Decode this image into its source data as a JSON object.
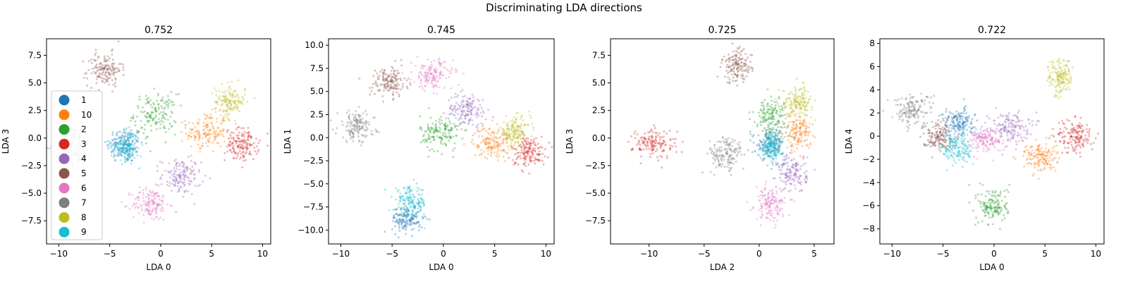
{
  "figure_title": "Discriminating LDA directions",
  "class_colors": {
    "1": "#1f77b4",
    "10": "#ff7f0e",
    "2": "#2ca02c",
    "3": "#d62728",
    "4": "#9467bd",
    "5": "#8c564b",
    "6": "#e377c2",
    "7": "#7f7f7f",
    "8": "#bcbd22",
    "9": "#17becf"
  },
  "legend": {
    "entries": [
      "1",
      "10",
      "2",
      "3",
      "4",
      "5",
      "6",
      "7",
      "8",
      "9"
    ],
    "location": "lower-left of first plot"
  },
  "chart_data": [
    {
      "type": "scatter",
      "title": "0.752",
      "xlabel": "LDA 0",
      "ylabel": "LDA 3",
      "xlim": [
        -11.2,
        10.8
      ],
      "ylim": [
        -9.6,
        9.0
      ],
      "xticks": [
        -10,
        -5,
        0,
        5,
        10
      ],
      "xtick_labels": [
        "−10",
        "−5",
        "0",
        "5",
        "10"
      ],
      "yticks": [
        -7.5,
        -5.0,
        -2.5,
        0.0,
        2.5,
        5.0,
        7.5
      ],
      "ytick_labels": [
        "−7.5",
        "−5.0",
        "−2.5",
        "0.0",
        "2.5",
        "5.0",
        "7.5"
      ],
      "grid": false,
      "has_legend": true,
      "clusters": [
        {
          "label": "1",
          "center": [
            -3.5,
            -0.6
          ],
          "spread": [
            1.2,
            1.1
          ]
        },
        {
          "label": "10",
          "center": [
            4.5,
            0.5
          ],
          "spread": [
            1.3,
            1.2
          ]
        },
        {
          "label": "2",
          "center": [
            -0.5,
            2.2
          ],
          "spread": [
            1.4,
            1.2
          ]
        },
        {
          "label": "3",
          "center": [
            8.0,
            -0.6
          ],
          "spread": [
            1.1,
            1.0
          ]
        },
        {
          "label": "4",
          "center": [
            2.0,
            -3.5
          ],
          "spread": [
            1.3,
            1.1
          ]
        },
        {
          "label": "5",
          "center": [
            -5.5,
            6.2
          ],
          "spread": [
            1.1,
            1.0
          ]
        },
        {
          "label": "6",
          "center": [
            -1.0,
            -6.0
          ],
          "spread": [
            1.2,
            1.0
          ]
        },
        {
          "label": "7",
          "center": [
            -8.5,
            -0.8
          ],
          "spread": [
            1.3,
            1.2
          ]
        },
        {
          "label": "8",
          "center": [
            6.8,
            3.3
          ],
          "spread": [
            1.0,
            1.0
          ]
        },
        {
          "label": "9",
          "center": [
            -3.5,
            -0.8
          ],
          "spread": [
            0.9,
            0.9
          ]
        }
      ]
    },
    {
      "type": "scatter",
      "title": "0.745",
      "xlabel": "LDA 0",
      "ylabel": "LDA 1",
      "xlim": [
        -11.2,
        10.8
      ],
      "ylim": [
        -11.5,
        10.7
      ],
      "xticks": [
        -10,
        -5,
        0,
        5,
        10
      ],
      "xtick_labels": [
        "−10",
        "−5",
        "0",
        "5",
        "10"
      ],
      "yticks": [
        -10.0,
        -7.5,
        -5.0,
        -2.5,
        0.0,
        2.5,
        5.0,
        7.5,
        10.0
      ],
      "ytick_labels": [
        "−10.0",
        "−7.5",
        "−5.0",
        "−2.5",
        "0.0",
        "2.5",
        "5.0",
        "7.5",
        "10.0"
      ],
      "grid": false,
      "has_legend": false,
      "clusters": [
        {
          "label": "1",
          "center": [
            -3.5,
            -8.8
          ],
          "spread": [
            1.0,
            1.0
          ]
        },
        {
          "label": "10",
          "center": [
            4.7,
            -0.5
          ],
          "spread": [
            1.2,
            1.1
          ]
        },
        {
          "label": "2",
          "center": [
            -0.3,
            0.5
          ],
          "spread": [
            1.3,
            1.3
          ]
        },
        {
          "label": "3",
          "center": [
            8.3,
            -1.5
          ],
          "spread": [
            1.1,
            1.1
          ]
        },
        {
          "label": "4",
          "center": [
            2.3,
            3.0
          ],
          "spread": [
            1.3,
            1.2
          ]
        },
        {
          "label": "5",
          "center": [
            -5.3,
            6.0
          ],
          "spread": [
            1.2,
            1.1
          ]
        },
        {
          "label": "6",
          "center": [
            -1.0,
            6.8
          ],
          "spread": [
            1.3,
            1.1
          ]
        },
        {
          "label": "7",
          "center": [
            -8.5,
            1.2
          ],
          "spread": [
            1.2,
            1.1
          ]
        },
        {
          "label": "8",
          "center": [
            7.0,
            0.7
          ],
          "spread": [
            1.0,
            1.0
          ]
        },
        {
          "label": "9",
          "center": [
            -3.2,
            -7.0
          ],
          "spread": [
            1.1,
            1.1
          ]
        }
      ]
    },
    {
      "type": "scatter",
      "title": "0.725",
      "xlabel": "LDA 2",
      "ylabel": "LDA 3",
      "xlim": [
        -13.5,
        6.8
      ],
      "ylim": [
        -9.6,
        9.0
      ],
      "xticks": [
        -10,
        -5,
        0,
        5
      ],
      "xtick_labels": [
        "−10",
        "−5",
        "0",
        "5"
      ],
      "yticks": [
        -7.5,
        -5.0,
        -2.5,
        0.0,
        2.5,
        5.0,
        7.5
      ],
      "ytick_labels": [
        "−7.5",
        "−5.0",
        "−2.5",
        "0.0",
        "2.5",
        "5.0",
        "7.5"
      ],
      "grid": false,
      "has_legend": false,
      "clusters": [
        {
          "label": "1",
          "center": [
            1.0,
            -0.5
          ],
          "spread": [
            0.8,
            0.9
          ]
        },
        {
          "label": "10",
          "center": [
            3.5,
            0.5
          ],
          "spread": [
            0.8,
            1.1
          ]
        },
        {
          "label": "2",
          "center": [
            1.0,
            2.0
          ],
          "spread": [
            1.0,
            1.2
          ]
        },
        {
          "label": "3",
          "center": [
            -9.5,
            -0.5
          ],
          "spread": [
            1.3,
            0.9
          ]
        },
        {
          "label": "4",
          "center": [
            3.0,
            -3.2
          ],
          "spread": [
            0.9,
            1.2
          ]
        },
        {
          "label": "5",
          "center": [
            -2.0,
            6.5
          ],
          "spread": [
            0.9,
            1.0
          ]
        },
        {
          "label": "6",
          "center": [
            1.0,
            -6.0
          ],
          "spread": [
            0.9,
            1.0
          ]
        },
        {
          "label": "7",
          "center": [
            -3.0,
            -1.5
          ],
          "spread": [
            1.1,
            1.1
          ]
        },
        {
          "label": "8",
          "center": [
            3.5,
            3.3
          ],
          "spread": [
            0.9,
            0.9
          ]
        },
        {
          "label": "9",
          "center": [
            1.2,
            -0.8
          ],
          "spread": [
            0.7,
            0.8
          ]
        }
      ]
    },
    {
      "type": "scatter",
      "title": "0.722",
      "xlabel": "LDA 0",
      "ylabel": "LDA 4",
      "xlim": [
        -11.2,
        10.8
      ],
      "ylim": [
        -9.3,
        8.4
      ],
      "xticks": [
        -10,
        -5,
        0,
        5,
        10
      ],
      "xtick_labels": [
        "−10",
        "−5",
        "0",
        "5",
        "10"
      ],
      "yticks": [
        -8,
        -6,
        -4,
        -2,
        0,
        2,
        4,
        6,
        8
      ],
      "ytick_labels": [
        "−8",
        "−6",
        "−4",
        "−2",
        "0",
        "2",
        "4",
        "6",
        "8"
      ],
      "grid": false,
      "has_legend": false,
      "clusters": [
        {
          "label": "1",
          "center": [
            -3.5,
            1.2
          ],
          "spread": [
            1.0,
            0.8
          ]
        },
        {
          "label": "10",
          "center": [
            4.5,
            -1.8
          ],
          "spread": [
            1.1,
            0.9
          ]
        },
        {
          "label": "2",
          "center": [
            0.0,
            -6.0
          ],
          "spread": [
            1.0,
            1.1
          ]
        },
        {
          "label": "3",
          "center": [
            8.0,
            0.0
          ],
          "spread": [
            1.2,
            1.0
          ]
        },
        {
          "label": "4",
          "center": [
            1.5,
            0.8
          ],
          "spread": [
            1.3,
            0.9
          ]
        },
        {
          "label": "5",
          "center": [
            -5.5,
            0.0
          ],
          "spread": [
            1.0,
            0.8
          ]
        },
        {
          "label": "6",
          "center": [
            -1.0,
            -0.3
          ],
          "spread": [
            1.2,
            0.7
          ]
        },
        {
          "label": "7",
          "center": [
            -8.0,
            2.3
          ],
          "spread": [
            1.3,
            0.9
          ]
        },
        {
          "label": "8",
          "center": [
            6.5,
            5.0
          ],
          "spread": [
            0.8,
            1.1
          ]
        },
        {
          "label": "9",
          "center": [
            -3.5,
            -1.0
          ],
          "spread": [
            1.0,
            1.0
          ]
        }
      ]
    }
  ]
}
